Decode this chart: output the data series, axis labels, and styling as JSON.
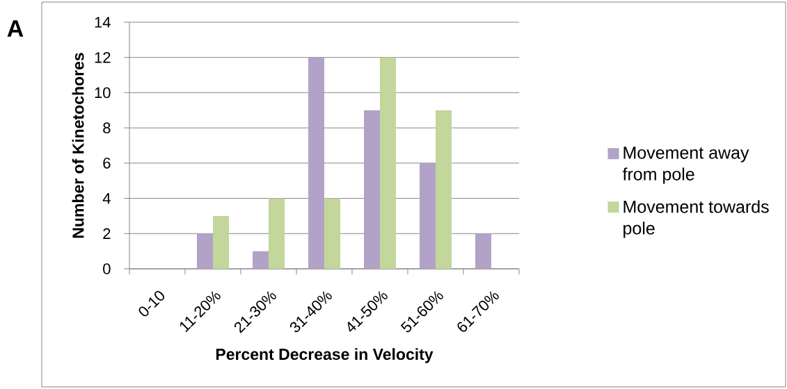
{
  "chart_data": {
    "type": "bar",
    "xlabel": "Percent Decrease in Velocity",
    "ylabel": "Number of Kinetochores",
    "annotations": [
      "A"
    ],
    "categories": [
      "0-10",
      "11-20%",
      "21-30%",
      "31-40%",
      "41-50%",
      "51-60%",
      "61-70%"
    ],
    "series": [
      {
        "name": "Movement away from pole",
        "color": "#b3a2c7",
        "values": [
          0,
          2,
          1,
          12,
          9,
          6,
          2
        ]
      },
      {
        "name": "Movement towards pole",
        "color": "#c3d69b",
        "values": [
          0,
          3,
          4,
          4,
          12,
          9,
          0
        ]
      }
    ],
    "ylim": [
      0,
      14
    ],
    "yticks": [
      0,
      2,
      4,
      6,
      8,
      10,
      12,
      14
    ],
    "grid": "y",
    "legend": "right"
  }
}
